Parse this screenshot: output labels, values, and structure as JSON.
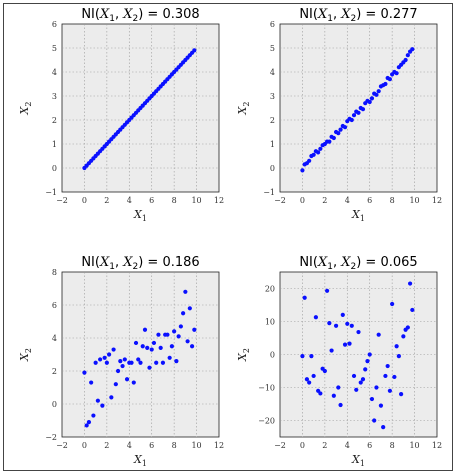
{
  "colors": {
    "point": "#0a10ff",
    "panel_bg": "#ececec",
    "grid": "#9a9a9a"
  },
  "chart_data": [
    {
      "type": "scatter",
      "title": "NI(X1, X2) = 0.308",
      "xlabel": "X1",
      "ylabel": "X2",
      "xlim": [
        -2,
        12
      ],
      "ylim": [
        -1,
        6
      ],
      "xticks": [
        -2,
        0,
        2,
        4,
        6,
        8,
        10,
        12
      ],
      "yticks": [
        -1,
        0,
        1,
        2,
        3,
        4,
        5,
        6
      ],
      "grid": true,
      "x": [
        0,
        0.2,
        0.4,
        0.6,
        0.8,
        1,
        1.2,
        1.4,
        1.6,
        1.8,
        2,
        2.2,
        2.4,
        2.6,
        2.8,
        3,
        3.2,
        3.4,
        3.6,
        3.8,
        4,
        4.2,
        4.4,
        4.6,
        4.8,
        5,
        5.2,
        5.4,
        5.6,
        5.8,
        6,
        6.2,
        6.4,
        6.6,
        6.8,
        7,
        7.2,
        7.4,
        7.6,
        7.8,
        8,
        8.2,
        8.4,
        8.6,
        8.8,
        9,
        9.2,
        9.4,
        9.6,
        9.8
      ],
      "y": [
        0,
        0.1,
        0.2,
        0.3,
        0.4,
        0.5,
        0.6,
        0.7,
        0.8,
        0.9,
        1,
        1.1,
        1.2,
        1.3,
        1.4,
        1.5,
        1.6,
        1.7,
        1.8,
        1.9,
        2,
        2.1,
        2.2,
        2.3,
        2.4,
        2.5,
        2.6,
        2.7,
        2.8,
        2.9,
        3,
        3.1,
        3.2,
        3.3,
        3.4,
        3.5,
        3.6,
        3.7,
        3.8,
        3.9,
        4,
        4.1,
        4.2,
        4.3,
        4.4,
        4.5,
        4.6,
        4.7,
        4.8,
        4.9
      ]
    },
    {
      "type": "scatter",
      "title": "NI(X1, X2) = 0.277",
      "xlabel": "X1",
      "ylabel": "X2",
      "xlim": [
        -2,
        12
      ],
      "ylim": [
        -1,
        6
      ],
      "xticks": [
        -2,
        0,
        2,
        4,
        6,
        8,
        10,
        12
      ],
      "yticks": [
        -1,
        0,
        1,
        2,
        3,
        4,
        5,
        6
      ],
      "grid": true,
      "x": [
        0,
        0.2,
        0.4,
        0.6,
        0.8,
        1,
        1.2,
        1.4,
        1.6,
        1.8,
        2,
        2.2,
        2.4,
        2.6,
        2.8,
        3,
        3.2,
        3.4,
        3.6,
        3.8,
        4,
        4.2,
        4.4,
        4.6,
        4.8,
        5,
        5.2,
        5.4,
        5.6,
        5.8,
        6,
        6.2,
        6.4,
        6.6,
        6.8,
        7,
        7.2,
        7.4,
        7.6,
        7.8,
        8,
        8.2,
        8.4,
        8.6,
        8.8,
        9,
        9.2,
        9.4,
        9.6,
        9.8
      ],
      "y": [
        -0.1,
        0.15,
        0.2,
        0.3,
        0.5,
        0.55,
        0.7,
        0.65,
        0.8,
        0.95,
        1.0,
        1.1,
        1.1,
        1.3,
        1.25,
        1.5,
        1.45,
        1.6,
        1.75,
        1.7,
        1.95,
        2.05,
        2.0,
        2.2,
        2.35,
        2.3,
        2.5,
        2.45,
        2.7,
        2.8,
        2.75,
        2.9,
        3.1,
        3.05,
        3.2,
        3.4,
        3.45,
        3.5,
        3.75,
        3.7,
        3.9,
        4.0,
        3.95,
        4.2,
        4.3,
        4.4,
        4.5,
        4.7,
        4.85,
        4.95
      ]
    },
    {
      "type": "scatter",
      "title": "NI(X1, X2) = 0.186",
      "xlabel": "X1",
      "ylabel": "X2",
      "xlim": [
        -2,
        12
      ],
      "ylim": [
        -2,
        8
      ],
      "xticks": [
        -2,
        0,
        2,
        4,
        6,
        8,
        10,
        12
      ],
      "yticks": [
        -2,
        0,
        2,
        4,
        6,
        8
      ],
      "grid": true,
      "x": [
        0,
        0.2,
        0.4,
        0.6,
        0.8,
        1,
        1.2,
        1.4,
        1.6,
        1.8,
        2,
        2.2,
        2.4,
        2.6,
        2.8,
        3,
        3.2,
        3.4,
        3.6,
        3.8,
        4,
        4.2,
        4.4,
        4.6,
        4.8,
        5,
        5.2,
        5.4,
        5.6,
        5.8,
        6,
        6.2,
        6.4,
        6.6,
        6.8,
        7,
        7.2,
        7.4,
        7.6,
        7.8,
        8,
        8.2,
        8.4,
        8.6,
        8.8,
        9,
        9.2,
        9.4,
        9.6,
        9.8
      ],
      "y": [
        1.9,
        -1.3,
        -1.1,
        1.3,
        -0.7,
        2.5,
        0.2,
        2.7,
        -0.1,
        2.8,
        2.5,
        3.0,
        0.4,
        3.3,
        1.2,
        2.0,
        2.6,
        2.3,
        2.7,
        1.5,
        2.5,
        2.5,
        1.3,
        3.7,
        2.7,
        2.5,
        3.5,
        4.5,
        3.4,
        2.2,
        3.3,
        3.7,
        2.5,
        4.2,
        3.4,
        2.5,
        4.2,
        4.2,
        2.8,
        3.5,
        4.4,
        2.6,
        4.1,
        4.7,
        5.5,
        6.8,
        3.8,
        5.8,
        3.5,
        4.5
      ]
    },
    {
      "type": "scatter",
      "title": "NI(X1, X2) = 0.065",
      "xlabel": "X1",
      "ylabel": "X2",
      "xlim": [
        -2,
        12
      ],
      "ylim": [
        -25,
        25
      ],
      "xticks": [
        -2,
        0,
        2,
        4,
        6,
        8,
        10,
        12
      ],
      "yticks": [
        -20,
        -10,
        0,
        10,
        20
      ],
      "grid": true,
      "x": [
        0,
        0.2,
        0.4,
        0.6,
        0.8,
        1,
        1.2,
        1.4,
        1.6,
        1.8,
        2,
        2.2,
        2.4,
        2.6,
        2.8,
        3,
        3.2,
        3.4,
        3.6,
        3.8,
        4,
        4.2,
        4.4,
        4.6,
        4.8,
        5,
        5.2,
        5.4,
        5.6,
        5.8,
        6,
        6.2,
        6.4,
        6.6,
        6.8,
        7,
        7.2,
        7.4,
        7.6,
        7.8,
        8,
        8.2,
        8.4,
        8.6,
        8.8,
        9,
        9.2,
        9.4,
        9.6,
        9.8
      ],
      "y": [
        -0.5,
        17.2,
        -7.5,
        -8.5,
        -0.5,
        -6.5,
        11.3,
        -11.0,
        -11.8,
        -4.3,
        -5.0,
        19.3,
        9.5,
        1.2,
        -12.5,
        8.7,
        -10.0,
        -15.3,
        12.0,
        3.0,
        9.3,
        3.3,
        8.7,
        -6.5,
        -10.7,
        6.8,
        -8.5,
        -7.5,
        -4.5,
        -2.0,
        0.0,
        -13.5,
        -20.0,
        -10.0,
        6.0,
        -15.5,
        -22.0,
        -6.5,
        -3.5,
        -11.0,
        15.3,
        -6.8,
        2.5,
        -0.5,
        -12.0,
        5.5,
        7.5,
        8.2,
        21.5,
        13.5
      ]
    }
  ]
}
